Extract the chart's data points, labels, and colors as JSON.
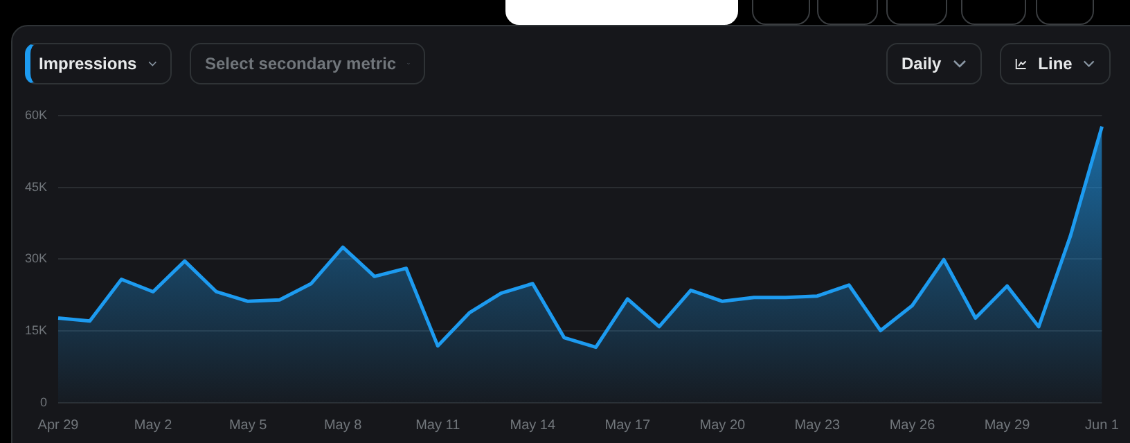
{
  "chart_data": {
    "type": "area",
    "annotations": [
      "Impressions",
      "Select secondary metric",
      "Daily",
      "Line"
    ],
    "categories": [
      "Apr 29",
      null,
      null,
      "May 2",
      null,
      null,
      "May 5",
      null,
      null,
      "May 8",
      null,
      null,
      "May 11",
      null,
      null,
      "May 14",
      null,
      null,
      "May 17",
      null,
      null,
      "May 20",
      null,
      null,
      "May 23",
      null,
      null,
      "May 26",
      null,
      null,
      "May 29",
      null,
      null,
      "Jun 1"
    ],
    "series": [
      {
        "color": "#1d9bf0",
        "values": [
          17700,
          17100,
          25800,
          23200,
          29600,
          23200,
          21200,
          21500,
          24900,
          32500,
          26400,
          28100,
          11900,
          18800,
          22900,
          24900,
          13600,
          11600,
          21700,
          15900,
          23500,
          21200,
          22000,
          22000,
          22300,
          24600,
          15100,
          20300,
          29900,
          17700,
          24400,
          15900,
          34800,
          57700
        ]
      }
    ],
    "ylim": [
      0,
      60000
    ],
    "yticks": [
      0,
      {
        "value": 15000,
        "label": "15K"
      },
      {
        "value": 30000,
        "label": "30K"
      },
      {
        "value": 45000,
        "label": "45K"
      },
      {
        "value": 60000,
        "label": "60K"
      }
    ],
    "grid": "y",
    "legend": false,
    "marker": "none",
    "line_style": "solid"
  }
}
